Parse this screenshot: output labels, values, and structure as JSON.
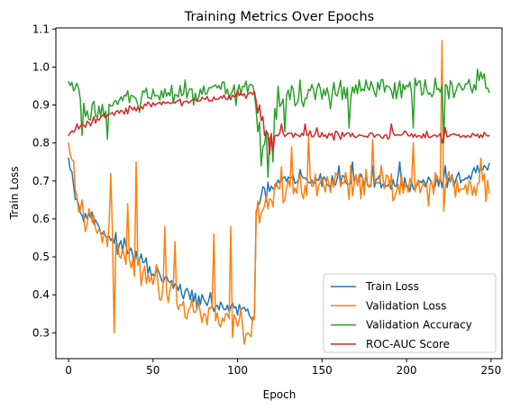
{
  "chart_data": {
    "type": "line",
    "title": "Training Metrics Over Epochs",
    "xlabel": "Epoch",
    "ylabel": "Train Loss",
    "xlim": [
      -7.5,
      256.5
    ],
    "ylim": [
      0.232,
      1.103
    ],
    "xticks": [
      0,
      50,
      100,
      150,
      200,
      250
    ],
    "yticks": [
      0.3,
      0.4,
      0.5,
      0.6,
      0.7,
      0.8,
      0.9,
      1.0,
      1.1
    ],
    "ytick_labels": [
      "0.3",
      "0.4",
      "0.5",
      "0.6",
      "0.7",
      "0.8",
      "0.9",
      "1.0",
      "1.1"
    ],
    "legend_position": "lower-right",
    "epochs": 250,
    "series": [
      {
        "name": "Train Loss",
        "color": "#1f77b4",
        "keypoints": [
          [
            0,
            0.78
          ],
          [
            5,
            0.64
          ],
          [
            10,
            0.62
          ],
          [
            20,
            0.57
          ],
          [
            30,
            0.53
          ],
          [
            40,
            0.5
          ],
          [
            50,
            0.46
          ],
          [
            60,
            0.43
          ],
          [
            70,
            0.4
          ],
          [
            80,
            0.38
          ],
          [
            90,
            0.37
          ],
          [
            100,
            0.36
          ],
          [
            108,
            0.35
          ],
          [
            110,
            0.34
          ],
          [
            111,
            0.62
          ],
          [
            115,
            0.66
          ],
          [
            125,
            0.7
          ],
          [
            150,
            0.7
          ],
          [
            175,
            0.7
          ],
          [
            200,
            0.69
          ],
          [
            225,
            0.7
          ],
          [
            249,
            0.73
          ]
        ],
        "noise": 0.018,
        "spikes": [
          [
            114,
            0.66
          ],
          [
            137,
            0.73
          ],
          [
            160,
            0.74
          ],
          [
            168,
            0.75
          ],
          [
            180,
            0.74
          ],
          [
            196,
            0.75
          ],
          [
            223,
            0.74
          ]
        ]
      },
      {
        "name": "Validation Loss",
        "color": "#ff7f0e",
        "keypoints": [
          [
            0,
            0.77
          ],
          [
            3,
            0.74
          ],
          [
            5,
            0.63
          ],
          [
            10,
            0.6
          ],
          [
            20,
            0.56
          ],
          [
            30,
            0.52
          ],
          [
            40,
            0.48
          ],
          [
            50,
            0.44
          ],
          [
            60,
            0.41
          ],
          [
            70,
            0.37
          ],
          [
            80,
            0.35
          ],
          [
            90,
            0.34
          ],
          [
            100,
            0.33
          ],
          [
            108,
            0.31
          ],
          [
            110,
            0.3
          ],
          [
            111,
            0.59
          ],
          [
            115,
            0.62
          ],
          [
            125,
            0.68
          ],
          [
            150,
            0.69
          ],
          [
            175,
            0.7
          ],
          [
            200,
            0.69
          ],
          [
            225,
            0.69
          ],
          [
            249,
            0.69
          ]
        ],
        "noise": 0.035,
        "spikes": [
          [
            1,
            0.77
          ],
          [
            25,
            0.72
          ],
          [
            27,
            0.3
          ],
          [
            35,
            0.64
          ],
          [
            40,
            0.75
          ],
          [
            57,
            0.58
          ],
          [
            63,
            0.54
          ],
          [
            86,
            0.56
          ],
          [
            92,
            0.33
          ],
          [
            96,
            0.58
          ],
          [
            104,
            0.27
          ],
          [
            108,
            0.29
          ],
          [
            132,
            0.79
          ],
          [
            142,
            0.82
          ],
          [
            180,
            0.81
          ],
          [
            204,
            0.8
          ],
          [
            221,
            1.07
          ],
          [
            222,
            0.62
          ],
          [
            244,
            0.76
          ]
        ]
      },
      {
        "name": "Validation Accuracy",
        "color": "#2ca02c",
        "keypoints": [
          [
            0,
            0.95
          ],
          [
            5,
            0.93
          ],
          [
            10,
            0.88
          ],
          [
            20,
            0.89
          ],
          [
            30,
            0.91
          ],
          [
            50,
            0.92
          ],
          [
            70,
            0.93
          ],
          [
            90,
            0.93
          ],
          [
            110,
            0.94
          ],
          [
            112,
            0.86
          ],
          [
            116,
            0.81
          ],
          [
            120,
            0.83
          ],
          [
            125,
            0.92
          ],
          [
            150,
            0.93
          ],
          [
            175,
            0.94
          ],
          [
            200,
            0.94
          ],
          [
            225,
            0.94
          ],
          [
            249,
            0.96
          ]
        ],
        "noise": 0.028,
        "spikes": [
          [
            2,
            0.96
          ],
          [
            8,
            0.82
          ],
          [
            23,
            0.81
          ],
          [
            114,
            0.74
          ],
          [
            118,
            0.71
          ],
          [
            121,
            0.75
          ],
          [
            124,
            0.95
          ],
          [
            128,
            0.83
          ],
          [
            166,
            0.84
          ],
          [
            204,
            0.84
          ],
          [
            222,
            0.8
          ],
          [
            224,
            0.95
          ]
        ]
      },
      {
        "name": "ROC-AUC Score",
        "color": "#d62728",
        "keypoints": [
          [
            0,
            0.82
          ],
          [
            5,
            0.84
          ],
          [
            10,
            0.85
          ],
          [
            20,
            0.87
          ],
          [
            35,
            0.89
          ],
          [
            50,
            0.9
          ],
          [
            70,
            0.91
          ],
          [
            90,
            0.92
          ],
          [
            110,
            0.93
          ],
          [
            112,
            0.89
          ],
          [
            116,
            0.83
          ],
          [
            120,
            0.82
          ],
          [
            130,
            0.82
          ],
          [
            150,
            0.82
          ],
          [
            175,
            0.82
          ],
          [
            200,
            0.82
          ],
          [
            225,
            0.82
          ],
          [
            249,
            0.82
          ]
        ],
        "noise": 0.009,
        "spikes": [
          [
            113,
            0.9
          ],
          [
            115,
            0.87
          ],
          [
            119,
            0.77
          ],
          [
            121,
            0.78
          ],
          [
            126,
            0.85
          ],
          [
            140,
            0.85
          ],
          [
            147,
            0.84
          ],
          [
            191,
            0.85
          ],
          [
            221,
            0.8
          ],
          [
            223,
            0.84
          ]
        ]
      }
    ]
  }
}
